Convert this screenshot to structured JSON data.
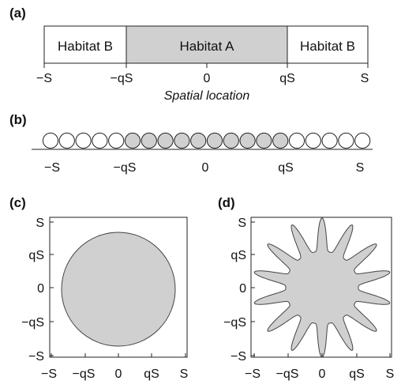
{
  "colors": {
    "habitat_a": "#d0d0d0",
    "habitat_b": "#ffffff",
    "stroke": "#222222"
  },
  "panel_a": {
    "letter": "(a)",
    "regions": [
      "Habitat B",
      "Habitat A",
      "Habitat B"
    ],
    "ticks": [
      "−S",
      "−qS",
      "0",
      "qS",
      "S"
    ],
    "axis_label": "Spatial location"
  },
  "panel_b": {
    "letter": "(b)",
    "patch_count": 20,
    "habitat_a_patches": [
      5,
      14
    ],
    "ticks": [
      "−S",
      "−qS",
      "0",
      "qS",
      "S"
    ]
  },
  "panel_c": {
    "letter": "(c)",
    "shape": "circle",
    "x_ticks": [
      "−S",
      "−qS",
      "0",
      "qS",
      "S"
    ],
    "y_ticks": [
      "S",
      "qS",
      "0",
      "−qS",
      "−S"
    ]
  },
  "panel_d": {
    "letter": "(d)",
    "shape": "star",
    "arms": 14,
    "x_ticks": [
      "−S",
      "−qS",
      "0",
      "qS",
      "S"
    ],
    "y_ticks": [
      "S",
      "qS",
      "0",
      "−qS",
      "−S"
    ]
  }
}
